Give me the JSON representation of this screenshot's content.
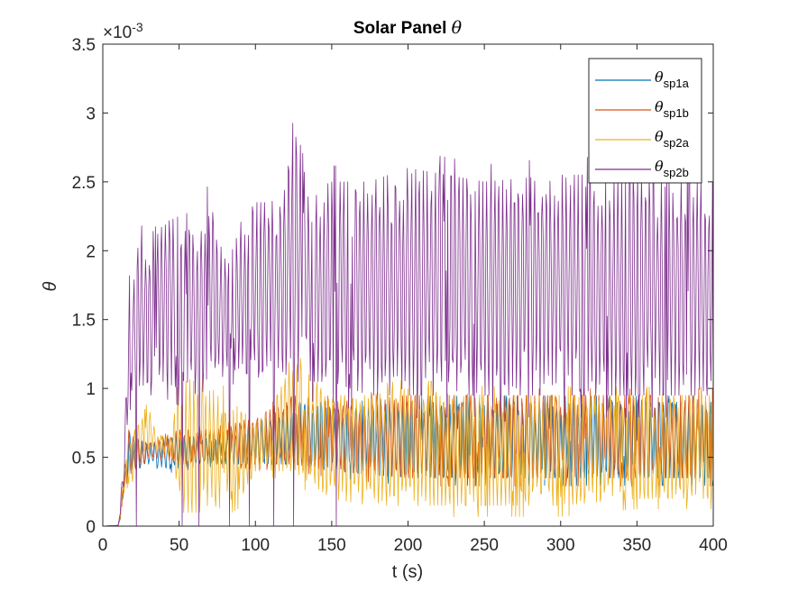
{
  "chart_data": {
    "type": "line",
    "title_prefix": "Solar Panel ",
    "title_symbol": "θ",
    "xlabel": "t (s)",
    "ylabel": "θ",
    "y_exponent_label": "×10",
    "y_exponent_power": "-3",
    "xlim": [
      0,
      400
    ],
    "ylim": [
      0,
      3.5
    ],
    "xticks": [
      "0",
      "50",
      "100",
      "150",
      "200",
      "250",
      "300",
      "350",
      "400"
    ],
    "yticks": [
      "0",
      "0.5",
      "1",
      "1.5",
      "2",
      "2.5",
      "3",
      "3.5"
    ],
    "legend_position": "top-right",
    "grid": false,
    "series": [
      {
        "name": "θ",
        "subscript": "sp1a",
        "color": "#0072BD",
        "x": [
          0,
          10,
          12,
          14,
          17,
          20,
          30,
          50,
          60,
          75,
          100,
          125,
          150,
          200,
          250,
          300,
          350,
          400
        ],
        "low": [
          0,
          0,
          0.05,
          0.3,
          0.3,
          0.4,
          0.45,
          0.4,
          0.45,
          0.45,
          0.45,
          0.45,
          0.4,
          0.35,
          0.35,
          0.35,
          0.35,
          0.35
        ],
        "high": [
          0,
          0.01,
          0.15,
          0.4,
          0.7,
          0.65,
          0.6,
          0.65,
          0.65,
          0.65,
          0.75,
          0.9,
          0.85,
          0.9,
          0.9,
          0.9,
          0.9,
          0.9
        ]
      },
      {
        "name": "θ",
        "subscript": "sp1b",
        "color": "#D95319",
        "x": [
          0,
          10,
          12,
          14,
          17,
          20,
          30,
          50,
          60,
          75,
          100,
          125,
          150,
          200,
          250,
          300,
          350,
          400
        ],
        "low": [
          0,
          0,
          0.05,
          0.3,
          0.3,
          0.4,
          0.5,
          0.45,
          0.45,
          0.45,
          0.45,
          0.45,
          0.4,
          0.35,
          0.35,
          0.35,
          0.35,
          0.35
        ],
        "high": [
          0,
          0.01,
          0.15,
          0.4,
          0.7,
          0.65,
          0.6,
          0.7,
          0.7,
          0.7,
          0.8,
          0.95,
          0.9,
          0.95,
          0.95,
          0.95,
          0.95,
          0.95
        ]
      },
      {
        "name": "θ",
        "subscript": "sp2a",
        "color": "#EDB120",
        "x": [
          0,
          10,
          12,
          15,
          20,
          25,
          30,
          35,
          45,
          50,
          60,
          70,
          80,
          90,
          100,
          110,
          125,
          150,
          175,
          200,
          250,
          300,
          350,
          400
        ],
        "low": [
          0,
          0,
          0.05,
          0.3,
          0.3,
          0.5,
          0.55,
          0.55,
          0.5,
          0.1,
          0.1,
          0.1,
          0.15,
          0.2,
          0.4,
          0.4,
          0.4,
          0.2,
          0.15,
          0.15,
          0.15,
          0.15,
          0.2,
          0.2
        ],
        "high": [
          0,
          0.01,
          0.2,
          0.5,
          0.7,
          0.75,
          0.9,
          0.65,
          0.65,
          1.1,
          1.05,
          1.0,
          0.95,
          0.85,
          0.75,
          0.85,
          1.2,
          0.95,
          0.95,
          1.0,
          0.95,
          0.95,
          0.95,
          0.95
        ]
      },
      {
        "name": "θ",
        "subscript": "sp2b",
        "color": "#7E2F8E",
        "x": [
          0,
          10,
          14,
          17,
          20,
          25,
          30,
          40,
          50,
          60,
          70,
          80,
          90,
          100,
          110,
          120,
          125,
          130,
          140,
          150,
          175,
          200,
          250,
          300,
          350,
          400
        ],
        "low": [
          0,
          0,
          0.3,
          0.9,
          1.0,
          1.0,
          1.05,
          1.05,
          1.0,
          0.95,
          1.0,
          1.1,
          1.15,
          1.05,
          1.2,
          1.1,
          1.05,
          1.05,
          1.05,
          1.05,
          0.95,
          0.95,
          0.95,
          0.95,
          0.95,
          0.95
        ],
        "high": [
          0,
          0.01,
          0.5,
          1.85,
          1.75,
          2.2,
          2.0,
          2.2,
          2.25,
          2.1,
          2.4,
          1.95,
          2.2,
          2.35,
          2.35,
          2.45,
          3.0,
          2.6,
          2.45,
          2.5,
          2.5,
          2.6,
          2.5,
          2.55,
          2.55,
          2.5
        ],
        "spikes_to_zero_x": [
          22,
          52,
          63,
          83,
          96,
          112,
          125,
          153
        ]
      }
    ]
  }
}
